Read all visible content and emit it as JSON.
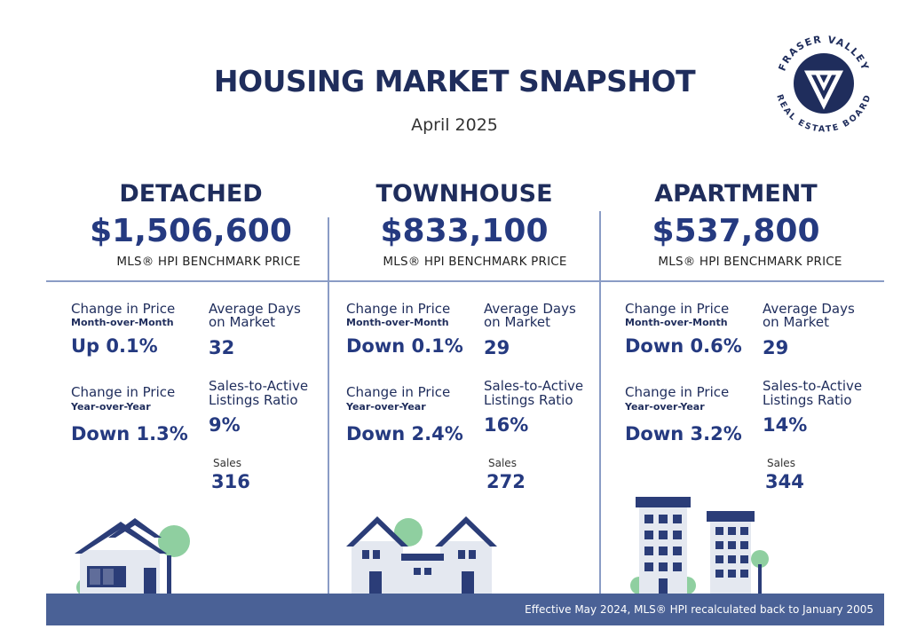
{
  "header": {
    "title": "HOUSING MARKET SNAPSHOT",
    "subtitle": "April 2025",
    "logo_top_text": "FRASER VALLEY",
    "logo_bottom_text": "REAL ESTATE BOARD"
  },
  "columns": [
    {
      "type": "DETACHED",
      "price": "$1,506,600",
      "benchmark_label": "MLS® HPI BENCHMARK PRICE",
      "mom_label": "Change in Price",
      "mom_sub": "Month-over-Month",
      "mom_value": "Up 0.1%",
      "yoy_label": "Change in Price",
      "yoy_sub": "Year-over-Year",
      "yoy_value": "Down 1.3%",
      "dom_label_1": "Average Days",
      "dom_label_2": "on Market",
      "dom_value": "32",
      "ratio_label_1": "Sales-to-Active",
      "ratio_label_2": "Listings Ratio",
      "ratio_value": "9%",
      "sales_label": "Sales",
      "sales_value": "316"
    },
    {
      "type": "TOWNHOUSE",
      "price": "$833,100",
      "benchmark_label": "MLS® HPI BENCHMARK PRICE",
      "mom_label": "Change in Price",
      "mom_sub": "Month-over-Month",
      "mom_value": "Down 0.1%",
      "yoy_label": "Change in Price",
      "yoy_sub": "Year-over-Year",
      "yoy_value": "Down 2.4%",
      "dom_label_1": "Average Days",
      "dom_label_2": "on Market",
      "dom_value": "29",
      "ratio_label_1": "Sales-to-Active",
      "ratio_label_2": "Listings Ratio",
      "ratio_value": "16%",
      "sales_label": "Sales",
      "sales_value": "272"
    },
    {
      "type": "APARTMENT",
      "price": "$537,800",
      "benchmark_label": "MLS® HPI BENCHMARK PRICE",
      "mom_label": "Change in Price",
      "mom_sub": "Month-over-Month",
      "mom_value": "Down 0.6%",
      "yoy_label": "Change in Price",
      "yoy_sub": "Year-over-Year",
      "yoy_value": "Down 3.2%",
      "dom_label_1": "Average Days",
      "dom_label_2": "on Market",
      "dom_value": "29",
      "ratio_label_1": "Sales-to-Active",
      "ratio_label_2": "Listings Ratio",
      "ratio_value": "14%",
      "sales_label": "Sales",
      "sales_value": "344"
    }
  ],
  "footer": {
    "note": "Effective May 2024, MLS® HPI recalculated back to January 2005"
  },
  "colors": {
    "navy": "#1f2d5c",
    "accent_blue": "#253a80",
    "footer_bg": "#4a6196",
    "divider": "#8a9cc5",
    "tree_green": "#8fcfa0",
    "house_wall": "#e4e8f0"
  },
  "icons": [
    "fvreb-logo-icon",
    "detached-house-icon",
    "townhouse-icon",
    "apartment-building-icon"
  ]
}
